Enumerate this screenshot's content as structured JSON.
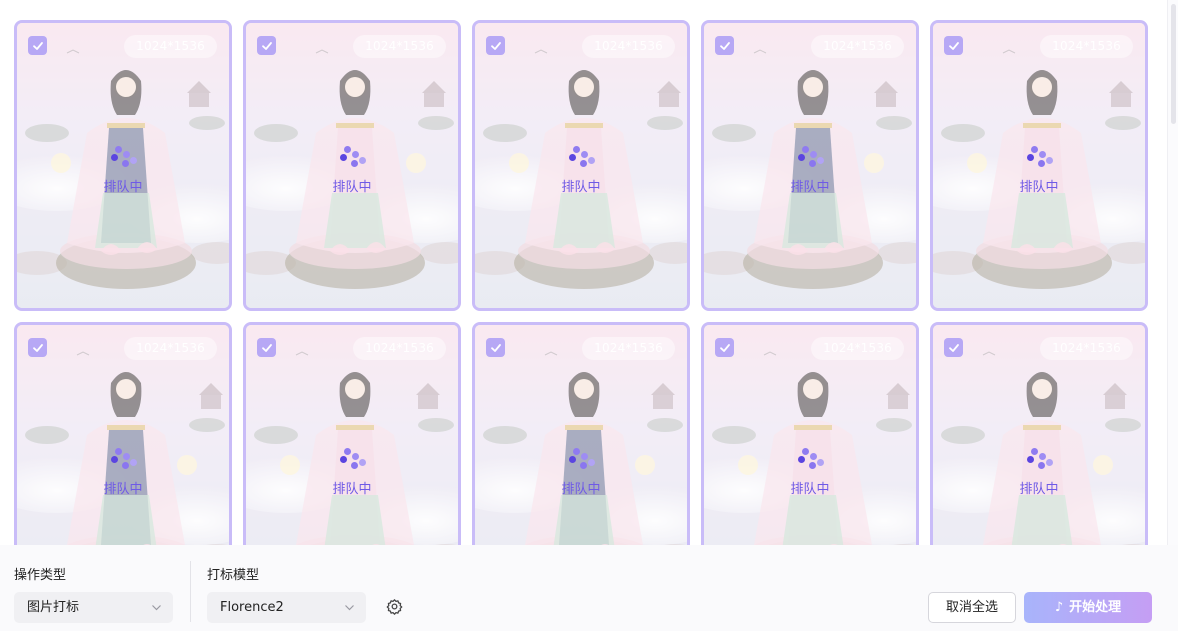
{
  "cards": [
    {
      "size": "1024*1536",
      "status": "排队中",
      "checked": true
    },
    {
      "size": "1024*1536",
      "status": "排队中",
      "checked": true
    },
    {
      "size": "1024*1536",
      "status": "排队中",
      "checked": true
    },
    {
      "size": "1024*1536",
      "status": "排队中",
      "checked": true
    },
    {
      "size": "1024*1536",
      "status": "排队中",
      "checked": true
    },
    {
      "size": "1024*1536",
      "status": "排队中",
      "checked": true
    },
    {
      "size": "1024*1536",
      "status": "排队中",
      "checked": true
    },
    {
      "size": "1024*1536",
      "status": "排队中",
      "checked": true
    },
    {
      "size": "1024*1536",
      "status": "排队中",
      "checked": true
    },
    {
      "size": "1024*1536",
      "status": "排队中",
      "checked": true
    }
  ],
  "toolbar": {
    "operation_label": "操作类型",
    "operation_value": "图片打标",
    "model_label": "打标模型",
    "model_value": "Florence2",
    "cancel_label": "取消全选",
    "start_label": "开始处理",
    "start_icon": "music-note-icon",
    "settings_icon": "gear-icon"
  },
  "colors": {
    "accent": "#c9bcf8",
    "status_text": "#6f5ae6",
    "start_gradient_from": "#a8b4fb",
    "start_gradient_to": "#c59ef4"
  }
}
